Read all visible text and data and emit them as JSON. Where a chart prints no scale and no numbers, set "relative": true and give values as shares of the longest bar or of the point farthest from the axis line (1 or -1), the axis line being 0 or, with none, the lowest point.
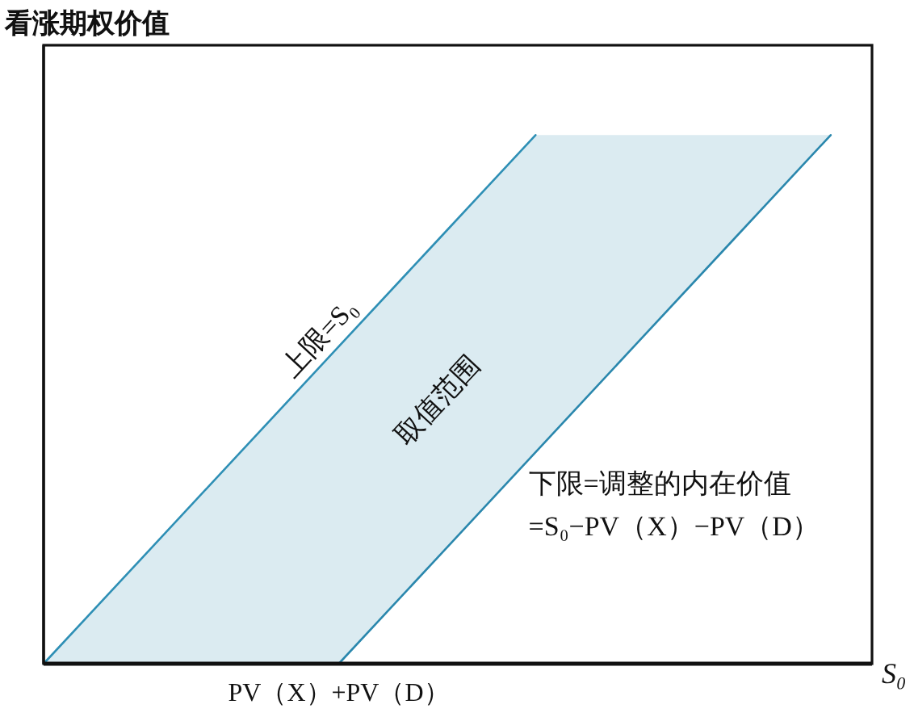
{
  "chart_data": {
    "type": "line",
    "relative": true,
    "ylabel": "看涨期权价值",
    "xlabel": "S₀",
    "categories": [
      null,
      null,
      null,
      null,
      null,
      null,
      null,
      null,
      null
    ],
    "series": [
      {
        "type": "line",
        "name": "上限=S₀",
        "color": "#2e8fb5",
        "values": [
          0,
          0.2,
          0.4,
          0.6,
          0.8,
          1,
          null,
          null,
          null
        ]
      },
      {
        "type": "line",
        "name": "下限=调整的内在价值\n=S₀−PV（X）−PV（D）",
        "color": "#2a87ad",
        "values": [
          null,
          null,
          null,
          0,
          0.2,
          0.4,
          0.6,
          0.8,
          1
        ],
        "lower": [
          0,
          0,
          0,
          0,
          0.2,
          0.4,
          0.6,
          0.8,
          1
        ],
        "upper": [
          0,
          0.2,
          0.4,
          0.6,
          0.8,
          1,
          1,
          1,
          1
        ]
      }
    ],
    "annotations": [
      "PV（X）+PV（D）",
      "取值范围"
    ]
  }
}
